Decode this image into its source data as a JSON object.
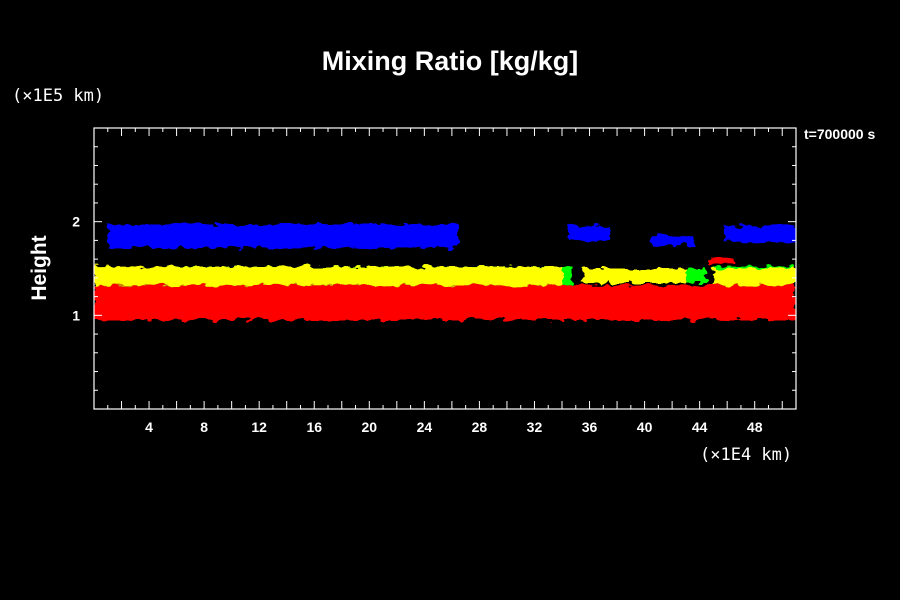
{
  "chart_data": {
    "type": "heatmap",
    "title": "Mixing Ratio [kg/kg]",
    "ylabel": "Height",
    "xlabel": "",
    "x_unit": "(×1E4 km)",
    "y_unit": "(×1E5 km)",
    "time_label": "t=700000 s",
    "xlim": [
      0,
      51
    ],
    "ylim": [
      0,
      3
    ],
    "x_ticks": [
      4,
      8,
      12,
      16,
      20,
      24,
      28,
      32,
      36,
      40,
      44,
      48
    ],
    "y_ticks": [
      1,
      2
    ],
    "colors": {
      "blue": "#0000ff",
      "yellow": "#ffff00",
      "green": "#00ff00",
      "red": "#ff0000",
      "background": "#000000"
    },
    "bands": [
      {
        "color": "blue",
        "segments": [
          [
            1.0,
            26.5,
            1.72,
            1.97
          ],
          [
            34.5,
            37.5,
            1.8,
            1.95
          ],
          [
            40.5,
            43.5,
            1.75,
            1.85
          ],
          [
            45.8,
            51,
            1.78,
            1.95
          ]
        ]
      },
      {
        "color": "green",
        "segments": [
          [
            6.0,
            34.8,
            1.32,
            1.52
          ],
          [
            36.0,
            44.5,
            1.35,
            1.5
          ],
          [
            45.0,
            51,
            1.35,
            1.52
          ]
        ]
      },
      {
        "color": "yellow",
        "segments": [
          [
            0,
            34.0,
            1.32,
            1.52
          ],
          [
            35.5,
            43.0,
            1.34,
            1.5
          ],
          [
            45.0,
            51,
            1.32,
            1.5
          ]
        ]
      },
      {
        "color": "red",
        "segments": [
          [
            0,
            51,
            0.95,
            1.32
          ],
          [
            44.5,
            46.5,
            1.55,
            1.6
          ]
        ]
      }
    ]
  }
}
